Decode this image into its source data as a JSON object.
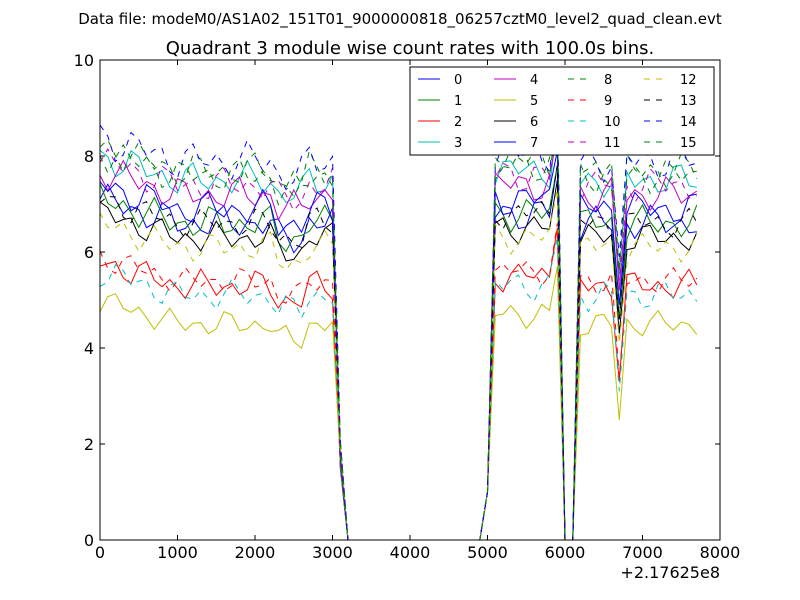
{
  "figure": {
    "suptitle": "Data file: modeM0/AS1A02_151T01_9000000818_06257cztM0_level2_quad_clean.evt",
    "title": "Quadrant 3 module wise count rates with 100.0s bins.",
    "x_offset_label": "+2.17625e8"
  },
  "chart_data": {
    "type": "line",
    "title": "Quadrant 3 module wise count rates with 100.0s bins.",
    "xlabel": "",
    "ylabel": "",
    "xlim": [
      0,
      8000
    ],
    "ylim": [
      0,
      10
    ],
    "x_offset": 217625000,
    "xticks": [
      0,
      1000,
      2000,
      3000,
      4000,
      5000,
      6000,
      7000,
      8000
    ],
    "xtick_labels": [
      "0",
      "1000",
      "2000",
      "3000",
      "4000",
      "5000",
      "6000",
      "7000",
      "8000"
    ],
    "yticks": [
      0,
      2,
      4,
      6,
      8,
      10
    ],
    "ytick_labels": [
      "0",
      "2",
      "4",
      "6",
      "8",
      "10"
    ],
    "grid": false,
    "legend": {
      "placement": "top-right",
      "columns": 4
    },
    "x": [
      0,
      100,
      200,
      300,
      400,
      500,
      600,
      700,
      800,
      900,
      1000,
      1100,
      1200,
      1300,
      1400,
      1500,
      1600,
      1700,
      1800,
      1900,
      2000,
      2100,
      2200,
      2300,
      2400,
      2500,
      2600,
      2700,
      2800,
      2900,
      3000,
      3100,
      3200,
      3300,
      3400,
      3500,
      3600,
      3700,
      3800,
      3900,
      4000,
      4100,
      4200,
      4300,
      4400,
      4500,
      4600,
      4700,
      4800,
      4900,
      5000,
      5100,
      5200,
      5300,
      5400,
      5500,
      5600,
      5700,
      5800,
      5900,
      6000,
      6100,
      6200,
      6300,
      6400,
      6500,
      6600,
      6700,
      6800,
      6900,
      7000,
      7100,
      7200,
      7300,
      7400,
      7500,
      7600,
      7700
    ],
    "series": [
      {
        "name": "0",
        "color": "#0000ff",
        "dash": "solid",
        "base": 6.6,
        "amp": 0.4
      },
      {
        "name": "1",
        "color": "#008000",
        "dash": "solid",
        "base": 6.6,
        "amp": 0.4
      },
      {
        "name": "2",
        "color": "#ff0000",
        "dash": "solid",
        "base": 5.3,
        "amp": 0.35
      },
      {
        "name": "3",
        "color": "#00bfbf",
        "dash": "solid",
        "base": 7.5,
        "amp": 0.4
      },
      {
        "name": "4",
        "color": "#bf00bf",
        "dash": "solid",
        "base": 7.2,
        "amp": 0.4
      },
      {
        "name": "5",
        "color": "#bfbf00",
        "dash": "solid",
        "base": 4.5,
        "amp": 0.3
      },
      {
        "name": "6",
        "color": "#000000",
        "dash": "solid",
        "base": 6.3,
        "amp": 0.35
      },
      {
        "name": "7",
        "color": "#0000ff",
        "dash": "solid",
        "base": 6.9,
        "amp": 0.4
      },
      {
        "name": "8",
        "color": "#008000",
        "dash": "dashed",
        "base": 7.7,
        "amp": 0.4
      },
      {
        "name": "9",
        "color": "#ff0000",
        "dash": "dashed",
        "base": 5.4,
        "amp": 0.3
      },
      {
        "name": "10",
        "color": "#00bfbf",
        "dash": "dashed",
        "base": 5.1,
        "amp": 0.35
      },
      {
        "name": "11",
        "color": "#bf00bf",
        "dash": "dashed",
        "base": 7.4,
        "amp": 0.4
      },
      {
        "name": "12",
        "color": "#bfbf00",
        "dash": "dashed",
        "base": 6.1,
        "amp": 0.35
      },
      {
        "name": "13",
        "color": "#000000",
        "dash": "dashed",
        "base": 6.6,
        "amp": 0.35
      },
      {
        "name": "14",
        "color": "#0000ff",
        "dash": "dashed",
        "base": 7.9,
        "amp": 0.45
      },
      {
        "name": "15",
        "color": "#008000",
        "dash": "dashed",
        "base": 7.6,
        "amp": 0.4
      }
    ]
  }
}
